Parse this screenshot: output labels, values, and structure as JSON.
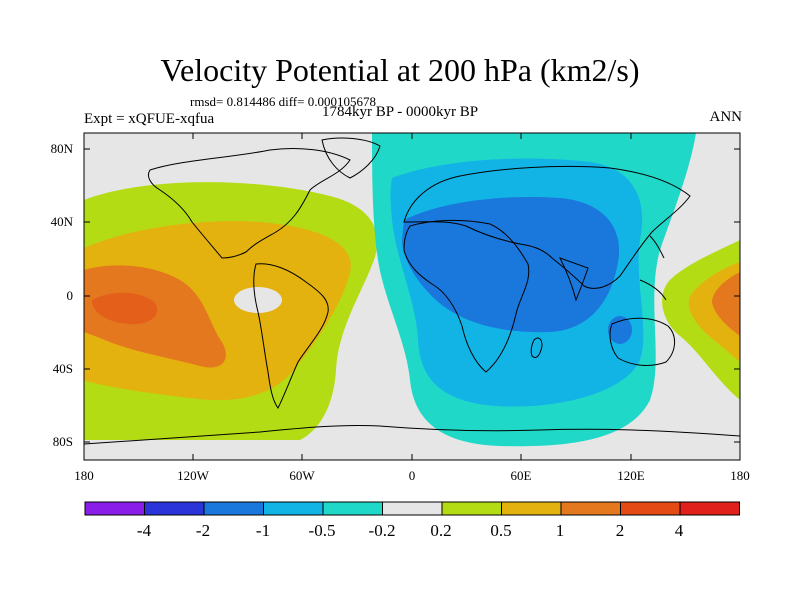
{
  "title": "Velocity Potential at 200 hPa (km2/s)",
  "stats": "rmsd= 0.814486 diff= 0.000105678",
  "experiment": "Expt = xQFUE-xqfua",
  "period": "1784kyr BP - 0000kyr BP",
  "season": "ANN",
  "lat_labels": [
    "80N",
    "40N",
    "0",
    "40S",
    "80S"
  ],
  "lon_labels": [
    "180",
    "120W",
    "60W",
    "0",
    "60E",
    "120E",
    "180"
  ],
  "colorbar": {
    "labels": [
      "-4",
      "-2",
      "-1",
      "-0.5",
      "-0.2",
      "0.2",
      "0.5",
      "1",
      "2",
      "4"
    ],
    "colors": [
      "#8a1ee8",
      "#2a34d8",
      "#1a78dc",
      "#12b4e6",
      "#20d8c8",
      "#e6e6e6",
      "#b4dc14",
      "#e4b20e",
      "#e4781e",
      "#e44a14",
      "#e0201a"
    ]
  },
  "colors": {
    "background": "#e6e6e6",
    "pos_02_05": "#b4dc14",
    "pos_05_1": "#e4b20e",
    "pos_1_2": "#e4781e",
    "neg_02_05": "#20d8c8",
    "neg_05_1": "#12b4e6",
    "neg_1_2": "#1a78dc"
  }
}
